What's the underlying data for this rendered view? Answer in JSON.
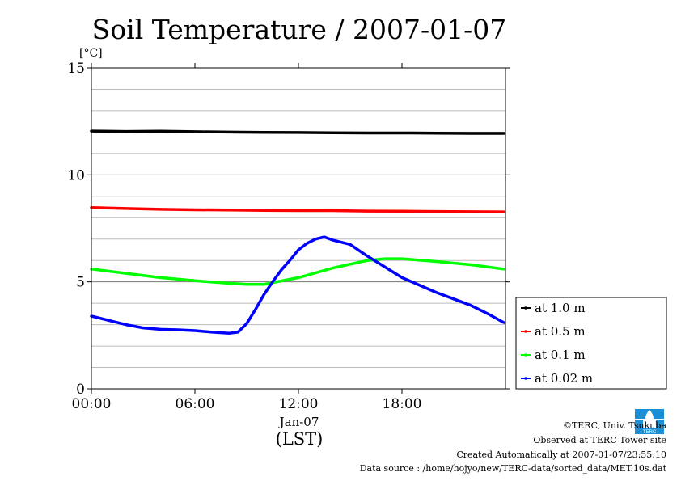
{
  "chart_data": {
    "type": "line",
    "title": "Soil Temperature / 2007-01-07",
    "ylabel": "[°C]",
    "xlabel": "(LST)",
    "date_label": "Jan-07",
    "ylim": [
      0,
      15
    ],
    "xlim": [
      0,
      24
    ],
    "y_ticks": [
      "0",
      "5",
      "10",
      "15"
    ],
    "x_ticks": [
      "00:00",
      "06:00",
      "12:00",
      "18:00"
    ],
    "grid": true,
    "legend_position": "right",
    "series": [
      {
        "name": "at 1.0 m",
        "color": "#000000",
        "x": [
          0,
          2,
          4,
          6,
          8,
          10,
          12,
          14,
          16,
          18,
          20,
          22,
          23.9
        ],
        "y": [
          12.05,
          12.03,
          12.04,
          12.02,
          12.0,
          11.99,
          11.98,
          11.97,
          11.96,
          11.96,
          11.95,
          11.94,
          11.94
        ]
      },
      {
        "name": "at 0.5 m",
        "color": "#ff0000",
        "x": [
          0,
          2,
          4,
          6,
          8,
          10,
          12,
          14,
          16,
          18,
          20,
          22,
          23.9
        ],
        "y": [
          8.47,
          8.43,
          8.39,
          8.37,
          8.36,
          8.34,
          8.33,
          8.33,
          8.31,
          8.3,
          8.29,
          8.28,
          8.27
        ]
      },
      {
        "name": "at 0.1 m",
        "color": "#00ff00",
        "x": [
          0,
          2,
          4,
          6,
          8,
          9,
          10,
          12,
          14,
          16,
          17,
          18,
          20,
          22,
          23.9
        ],
        "y": [
          5.6,
          5.4,
          5.2,
          5.05,
          4.93,
          4.88,
          4.88,
          5.2,
          5.65,
          6.0,
          6.08,
          6.08,
          5.95,
          5.8,
          5.6
        ]
      },
      {
        "name": "at 0.02 m",
        "color": "#0000ff",
        "x": [
          0,
          1,
          2,
          3,
          4,
          5,
          6,
          7,
          8,
          8.5,
          9,
          9.5,
          10,
          10.5,
          11,
          11.5,
          12,
          12.5,
          13,
          13.5,
          14,
          15,
          16,
          17,
          18,
          19,
          20,
          21,
          22,
          23,
          23.9
        ],
        "y": [
          3.4,
          3.2,
          3.0,
          2.85,
          2.78,
          2.76,
          2.72,
          2.65,
          2.6,
          2.65,
          3.05,
          3.7,
          4.4,
          5.0,
          5.55,
          6.0,
          6.5,
          6.8,
          7.0,
          7.1,
          6.95,
          6.75,
          6.2,
          5.7,
          5.2,
          4.85,
          4.5,
          4.2,
          3.9,
          3.5,
          3.1
        ]
      }
    ]
  },
  "footer": {
    "copyright": "©TERC, Univ. Tsukuba",
    "observed": "Observed at TERC Tower site",
    "created": "Created Automatically at 2007-01-07/23:55:10",
    "source": "Data source : /home/hojyo/new/TERC-data/sorted_data/MET.10s.dat"
  },
  "logo": {
    "icon": "terc-logo-icon",
    "color": "#1a8fd6",
    "text": "TERC"
  }
}
